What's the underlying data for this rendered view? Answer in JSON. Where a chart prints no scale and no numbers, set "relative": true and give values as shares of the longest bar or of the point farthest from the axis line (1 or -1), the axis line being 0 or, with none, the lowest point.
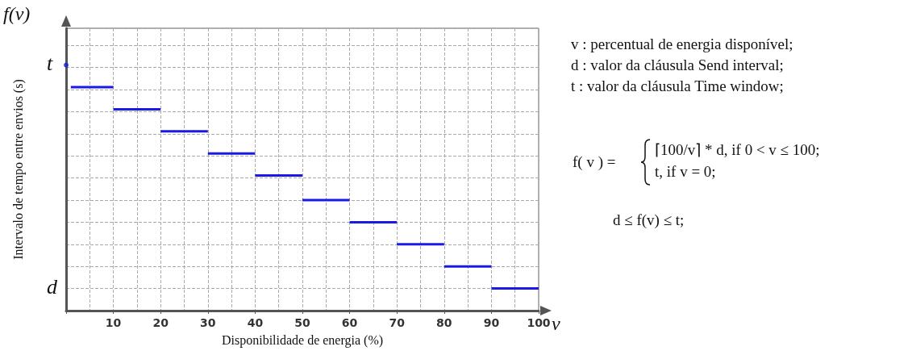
{
  "chart_data": {
    "type": "line",
    "relative": true,
    "xlabel": "Disponibilidade de energia (%)",
    "ylabel": "Intervalo de tempo entre envios (s)",
    "xlim": [
      0,
      100
    ],
    "xticks": [
      10,
      20,
      30,
      40,
      50,
      60,
      70,
      80,
      90,
      100
    ],
    "grid": true,
    "marker": "none",
    "line_style": "solid",
    "series": [
      {
        "color": "#1a1ae6",
        "x": [
          1,
          10,
          null,
          10,
          20,
          null,
          20,
          30,
          null,
          30,
          40,
          null,
          40,
          50,
          null,
          50,
          60,
          null,
          60,
          70,
          null,
          70,
          80,
          null,
          80,
          90,
          null,
          90,
          100
        ],
        "values": [
          0.91,
          0.91,
          null,
          0.82,
          0.82,
          null,
          0.73,
          0.73,
          null,
          0.64,
          0.64,
          null,
          0.55,
          0.55,
          null,
          0.45,
          0.45,
          null,
          0.36,
          0.36,
          null,
          0.27,
          0.27,
          null,
          0.18,
          0.18,
          null,
          0.09,
          0.09
        ]
      },
      {
        "type": "scatter",
        "marker": "circle",
        "color": "#1a1ae6",
        "x": [
          0
        ],
        "values": [
          1
        ]
      }
    ],
    "annotations": [
      "f(v)",
      "v",
      {
        "text": "t",
        "x": 0,
        "y": 1
      },
      "d",
      "v : percentual de energia disponível;",
      "d : valor da cláusula Send interval;",
      "t : valor da cláusula Time window;",
      "f( v ) =",
      "⌈100/v⌉ * d, if 0 < v ≤ 100;",
      "t, if v = 0;",
      "d ≤ f(v) ≤ t;"
    ]
  }
}
